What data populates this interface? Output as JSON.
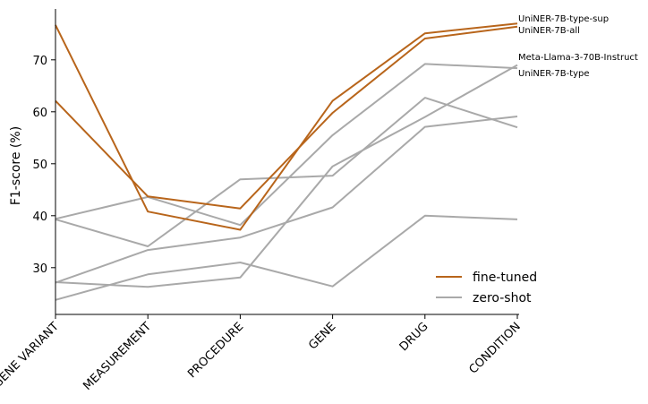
{
  "chart_data": {
    "type": "line",
    "title": "",
    "xlabel": "",
    "ylabel": "F1-score (%)",
    "categories": [
      "GENE VARIANT",
      "MEASUREMENT",
      "PROCEDURE",
      "GENE",
      "DRUG",
      "CONDITION"
    ],
    "yticks": [
      "30",
      "40",
      "50",
      "60",
      "70"
    ],
    "ylim": [
      21,
      80
    ],
    "grid": false,
    "legend": {
      "placement": "bottom-right",
      "entries": [
        {
          "label": "fine-tuned",
          "color": "#b8651b"
        },
        {
          "label": "zero-shot",
          "color": "#a9a9a9"
        }
      ]
    },
    "series": [
      {
        "name": "UniNER-7B-type-sup",
        "group": "fine-tuned",
        "labeled": true,
        "values": [
          76.7,
          40.8,
          37.3,
          62.1,
          75.1,
          77.0
        ]
      },
      {
        "name": "UniNER-7B-all",
        "group": "fine-tuned",
        "labeled": true,
        "values": [
          62.1,
          43.7,
          41.4,
          59.8,
          74.1,
          76.4
        ]
      },
      {
        "name": "Meta-Llama-3-70B-Instruct",
        "group": "zero-shot",
        "labeled": true,
        "values": [
          39.4,
          43.6,
          38.2,
          55.5,
          69.2,
          68.4
        ]
      },
      {
        "name": "UniNER-7B-type",
        "group": "zero-shot",
        "labeled": true,
        "values": [
          23.8,
          28.7,
          31.0,
          26.4,
          40.0,
          39.3
        ]
      },
      {
        "name": "",
        "group": "zero-shot",
        "labeled": false,
        "values": [
          39.3,
          34.1,
          47.0,
          47.7,
          62.7,
          57.0
        ]
      },
      {
        "name": "",
        "group": "zero-shot",
        "labeled": false,
        "values": [
          27.2,
          26.3,
          28.1,
          49.5,
          59.0,
          69.0
        ]
      },
      {
        "name": "",
        "group": "zero-shot",
        "labeled": false,
        "values": [
          27.1,
          33.4,
          35.8,
          41.6,
          57.1,
          59.1
        ]
      }
    ],
    "colors": {
      "fine-tuned": "#b8651b",
      "zero-shot": "#a9a9a9"
    }
  }
}
